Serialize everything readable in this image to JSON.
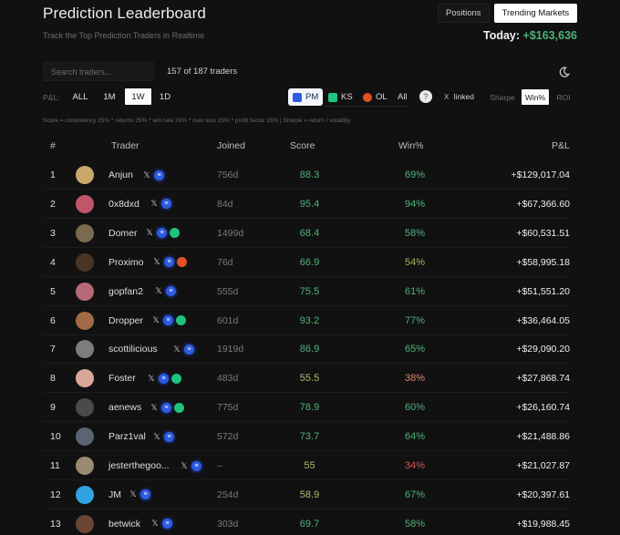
{
  "header": {
    "title": "Prediction Leaderboard",
    "subtitle": "Track the Top Prediction Traders in Realtime",
    "tabs": [
      {
        "label": "Positions",
        "active": false
      },
      {
        "label": "Trending Markets",
        "active": true
      }
    ],
    "today_label": "Today:",
    "today_value": "+$163,636"
  },
  "search": {
    "placeholder": "Search traders...",
    "value": "",
    "count_text": "157 of 187 traders"
  },
  "theme_toggle": {
    "icon": "moon-icon"
  },
  "pl_filter": {
    "label": "P&L:",
    "options": [
      {
        "label": "ALL",
        "active": false
      },
      {
        "label": "1M",
        "active": false
      },
      {
        "label": "1W",
        "active": true
      },
      {
        "label": "1D",
        "active": false
      }
    ]
  },
  "sources": {
    "options": [
      {
        "label": "PM",
        "active": true,
        "color": "#2d5be3"
      },
      {
        "label": "KS",
        "active": false,
        "color": "#1fc37d"
      },
      {
        "label": "OL",
        "active": false,
        "color": "#e0512a"
      },
      {
        "label": "All",
        "active": false
      }
    ],
    "help_icon": "?",
    "x_linked": {
      "icon": "X",
      "label": "linked"
    }
  },
  "sort": {
    "options": [
      {
        "label": "Sharpe",
        "active": false
      },
      {
        "label": "Win%",
        "active": true
      },
      {
        "label": "ROI",
        "active": false
      }
    ]
  },
  "formula": "Score = consistency 25% * returns 25% * win rate 20% * max loss 15% * profit factor 15%   |   Sharpe = return / volatility",
  "table": {
    "columns": [
      "#",
      "Trader",
      "Joined",
      "Score",
      "Win%",
      "P&L"
    ],
    "rows": [
      {
        "rank": "1",
        "name": "Anjun",
        "badges": [
          "x",
          "pm"
        ],
        "joined": "756d",
        "score": "88.3",
        "win": "69%",
        "pnl": "+$129,017.04",
        "avatar": "#c9a86a",
        "score_color": "#4fb27a",
        "win_color": "#4fb27a"
      },
      {
        "rank": "2",
        "name": "0x8dxd",
        "badges": [
          "x",
          "pm"
        ],
        "joined": "84d",
        "score": "95.4",
        "win": "94%",
        "pnl": "+$67,366.60",
        "avatar": "#c0566a",
        "score_color": "#4fb27a",
        "win_color": "#4fb27a"
      },
      {
        "rank": "3",
        "name": "Domer",
        "badges": [
          "x",
          "pm",
          "ks"
        ],
        "joined": "1499d",
        "score": "68.4",
        "win": "58%",
        "pnl": "+$60,531.51",
        "avatar": "#7a6a4f",
        "score_color": "#4fb27a",
        "win_color": "#4fb27a"
      },
      {
        "rank": "4",
        "name": "Proximo",
        "badges": [
          "x",
          "pm",
          "ol"
        ],
        "joined": "76d",
        "score": "66.9",
        "win": "54%",
        "pnl": "+$58,995.18",
        "avatar": "#4a3424",
        "score_color": "#4fb27a",
        "win_color": "#a6b55a"
      },
      {
        "rank": "5",
        "name": "gopfan2",
        "badges": [
          "x",
          "pm"
        ],
        "joined": "555d",
        "score": "75.5",
        "win": "61%",
        "pnl": "+$51,551.20",
        "avatar": "#b56a7a",
        "score_color": "#4fb27a",
        "win_color": "#4fb27a"
      },
      {
        "rank": "6",
        "name": "Dropper",
        "badges": [
          "x",
          "pm",
          "ks"
        ],
        "joined": "601d",
        "score": "93.2",
        "win": "77%",
        "pnl": "+$36,464.05",
        "avatar": "#a36b45",
        "score_color": "#4fb27a",
        "win_color": "#4fb27a"
      },
      {
        "rank": "7",
        "name": "scottilicious",
        "badges": [
          "x",
          "pm"
        ],
        "joined": "1919d",
        "score": "86.9",
        "win": "65%",
        "pnl": "+$29,090.20",
        "avatar": "#7d7d7d",
        "score_color": "#4fb27a",
        "win_color": "#4fb27a"
      },
      {
        "rank": "8",
        "name": "Foster",
        "badges": [
          "x",
          "pm",
          "ks"
        ],
        "joined": "483d",
        "score": "55.5",
        "win": "38%",
        "pnl": "+$27,868.74",
        "avatar": "#d9a79a",
        "score_color": "#b4b86a",
        "win_color": "#d9876a"
      },
      {
        "rank": "9",
        "name": "aenews",
        "badges": [
          "x",
          "pm",
          "ks"
        ],
        "joined": "775d",
        "score": "78.9",
        "win": "60%",
        "pnl": "+$26,160.74",
        "avatar": "#4a4a4a",
        "score_color": "#4fb27a",
        "win_color": "#4fb27a"
      },
      {
        "rank": "10",
        "name": "Parz1val",
        "badges": [
          "x",
          "pm"
        ],
        "joined": "572d",
        "score": "73.7",
        "win": "64%",
        "pnl": "+$21,488.86",
        "avatar": "#5a6472",
        "score_color": "#4fb27a",
        "win_color": "#4fb27a"
      },
      {
        "rank": "11",
        "name": "jesterthegoo...",
        "badges": [
          "x",
          "pm"
        ],
        "joined": "–",
        "score": "55",
        "win": "34%",
        "pnl": "+$21,027.87",
        "avatar": "#9a8a70",
        "score_color": "#b4b86a",
        "win_color": "#d0555a"
      },
      {
        "rank": "12",
        "name": "JM",
        "badges": [
          "x",
          "pm"
        ],
        "joined": "254d",
        "score": "58.9",
        "win": "67%",
        "pnl": "+$20,397.61",
        "avatar": "#2fa3e0",
        "score_color": "#b4b86a",
        "win_color": "#4fb27a"
      },
      {
        "rank": "13",
        "name": "betwick",
        "badges": [
          "x",
          "pm"
        ],
        "joined": "303d",
        "score": "69.7",
        "win": "58%",
        "pnl": "+$19,988.45",
        "avatar": "#6b4434",
        "score_color": "#4fb27a",
        "win_color": "#4fb27a"
      }
    ]
  }
}
